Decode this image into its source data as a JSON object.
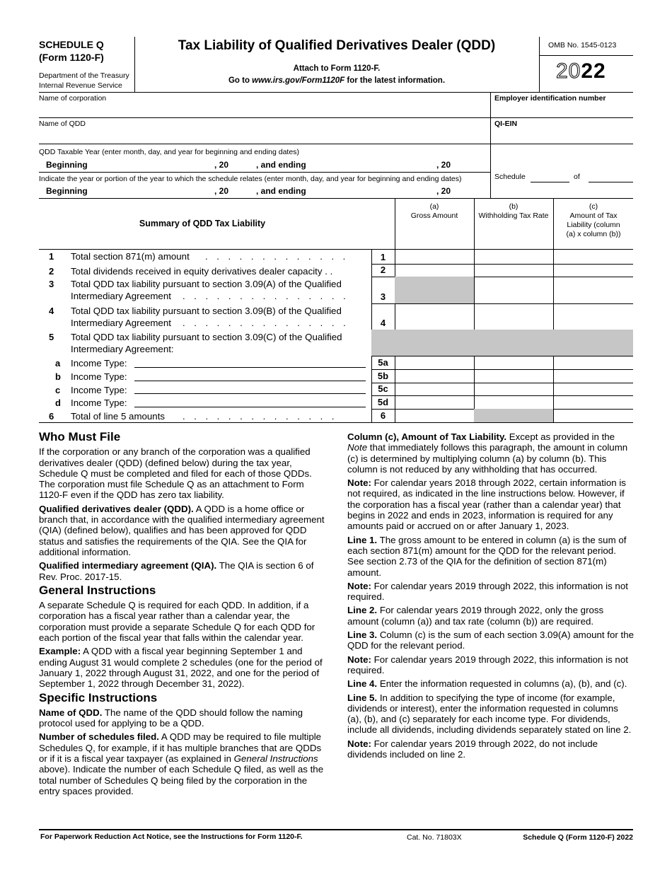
{
  "header": {
    "schedule": "SCHEDULE Q",
    "form": "(Form 1120-F)",
    "dept1": "Department of the Treasury",
    "dept2": "Internal Revenue Service",
    "title": "Tax Liability of Qualified Derivatives Dealer (QDD)",
    "attach": "Attach to Form 1120-F.",
    "goto_pre": "Go to ",
    "goto_url": "www.irs.gov/Form1120F",
    "goto_post": " for the latest information.",
    "omb": "OMB No. 1545-0123",
    "year_outline": "20",
    "year_bold": "22"
  },
  "fields": {
    "corp_name": "Name of corporation",
    "ein": "Employer identification number",
    "qdd_name": "Name of QDD",
    "qi_ein": "QI-EIN",
    "taxable_year": "QDD Taxable Year (enter month, day, and year for beginning and ending dates)",
    "beginning": "Beginning",
    "comma20": ", 20",
    "and_ending": ", and ending",
    "indicate": "Indicate the year or portion of the year to which the schedule relates (enter month, day, and year for beginning and ending dates)",
    "schedule": "Schedule",
    "of": "of"
  },
  "table": {
    "title": "Summary of QDD Tax Liability",
    "col_a": {
      "letter": "(a)",
      "label": "Gross Amount"
    },
    "col_b": {
      "letter": "(b)",
      "label": "Withholding Tax Rate"
    },
    "col_c": {
      "letter": "(c)",
      "label": "Amount of Tax Liability (column (a) x column (b))"
    },
    "rows": [
      {
        "num": "1",
        "text": "Total section 871(m) amount",
        "dots": ". . . . . . . . . . . . .",
        "box": "1"
      },
      {
        "num": "2",
        "text": "Total dividends received in equity derivatives dealer capacity . .",
        "box": "2"
      },
      {
        "num": "3",
        "text": "Total QDD tax liability pursuant to section 3.09(A) of the Qualified",
        "text2": "Intermediary Agreement",
        "dots": ". . . . . . . . . . . . . . .",
        "box": "3"
      },
      {
        "num": "4",
        "text": "Total QDD tax liability pursuant to section 3.09(B) of the Qualified",
        "text2": "Intermediary Agreement",
        "dots": ". . . . . . . . . . . . . . .",
        "box": "4"
      },
      {
        "num": "5",
        "text": "Total QDD tax liability pursuant to section 3.09(C) of the Qualified",
        "text2": "Intermediary Agreement:"
      },
      {
        "num": "a",
        "text": "Income Type:",
        "box": "5a"
      },
      {
        "num": "b",
        "text": "Income Type:",
        "box": "5b"
      },
      {
        "num": "c",
        "text": "Income Type:",
        "box": "5c"
      },
      {
        "num": "d",
        "text": "Income Type:",
        "box": "5d"
      },
      {
        "num": "6",
        "text": "Total of line 5 amounts",
        "dots": ". . . . . . . . . . . . . .",
        "box": "6"
      }
    ]
  },
  "instructions": {
    "who_title": "Who Must File",
    "who_p1": "If the corporation or any branch of the corporation was a qualified derivatives dealer (QDD) (defined below) during the tax year, Schedule Q must be completed and filed for each of those QDDs. The corporation must file Schedule Q as an attachment to Form 1120-F even if the QDD has zero tax liability.",
    "qdd_head": "Qualified derivatives dealer (QDD).",
    "qdd_body": " A QDD is a home office or branch that, in accordance with the qualified intermediary agreement (QIA) (defined below), qualifies and has been approved for QDD status and satisfies the requirements of the QIA. See the QIA for additional information.",
    "qia_head": "Qualified intermediary agreement (QIA).",
    "qia_body": " The QIA is section 6 of Rev. Proc. 2017-15.",
    "gen_title": "General Instructions",
    "gen_p1": "A separate Schedule Q is required for each QDD. In addition, if a corporation has a fiscal year rather than a calendar year, the corporation must provide a separate Schedule Q for each QDD for each portion of the fiscal year that falls within the calendar year.",
    "ex_head": "Example:",
    "ex_body": " A QDD with a fiscal year beginning September 1 and ending August 31 would complete 2 schedules (one for the period of January 1, 2022 through August 31, 2022, and one for the period of September 1, 2022 through December 31, 2022).",
    "spec_title": "Specific Instructions",
    "name_head": "Name of QDD.",
    "name_body": " The name of the QDD should follow the naming protocol used for applying to be a QDD.",
    "num_head": "Number of schedules filed.",
    "num_body1": " A QDD may be required to file multiple Schedules Q, for example, if it has multiple branches that are QDDs or if it is a fiscal year taxpayer (as explained in ",
    "num_ital": "General Instructions",
    "num_body2": " above). Indicate the number of each Schedule Q filed, as well as the total number of Schedules Q being filed by the corporation in the entry spaces provided.",
    "colc_head": "Column (c), Amount of Tax Liability.",
    "colc_body1": " Except as provided in the ",
    "colc_ital": "Note",
    "colc_body2": " that immediately follows this paragraph, the amount in column (c) is determined by multiplying column (a) by column (b). This column is not reduced by any withholding that has occurred.",
    "note_head": "Note:",
    "note1": " For calendar years 2018 through 2022, certain information is not required, as indicated in the line instructions below. However, if the corporation has a fiscal year (rather than a calendar year) that begins in 2022 and ends in 2023, information is required for any amounts paid or accrued on or after January 1, 2023.",
    "l1_head": "Line 1.",
    "l1_body": " The gross amount to be entered in column (a) is the sum of each section 871(m) amount for the QDD for the relevant period. See section 2.73 of the QIA for the definition of section 871(m) amount.",
    "note2": " For calendar years 2019 through 2022, this information is not required.",
    "l2_head": "Line 2.",
    "l2_body": " For calendar years 2019 through 2022, only the gross amount (column (a)) and tax rate (column (b)) are required.",
    "l3_head": "Line 3.",
    "l3_body": " Column (c) is the sum of each section 3.09(A) amount for the QDD for the relevant period.",
    "note3": " For calendar years 2019 through 2022, this information is not required.",
    "l4_head": "Line 4.",
    "l4_body": " Enter the information requested in columns (a), (b), and (c).",
    "l5_head": "Line 5.",
    "l5_body": " In addition to specifying the type of income (for example, dividends or interest), enter the information requested in columns (a), (b), and (c) separately for each income type. For dividends, include all dividends, including dividends separately stated on line 2.",
    "note4": " For calendar years 2019 through 2022, do not include dividends included on line 2."
  },
  "footer": {
    "paperwork": "For Paperwork Reduction Act Notice, see the Instructions for Form 1120-F.",
    "cat": "Cat. No. 71803X",
    "form": "Schedule Q (Form 1120-F) 2022"
  }
}
